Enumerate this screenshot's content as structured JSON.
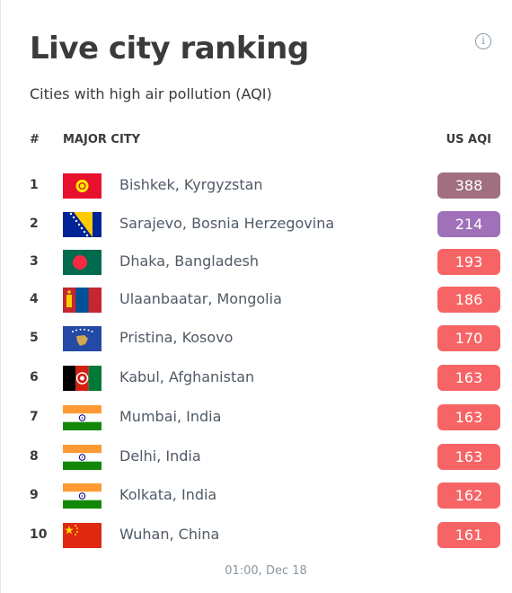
{
  "title": "Live city ranking",
  "subtitle": "Cities with high air pollution (AQI)",
  "info_icon": "info-icon",
  "columns": {
    "rank": "#",
    "city": "MAJOR CITY",
    "aqi": "US AQI"
  },
  "rows": [
    {
      "rank": "1",
      "city": "Bishkek, Kyrgyzstan",
      "aqi": "388",
      "color": "#a07080",
      "flag": "kyrgyzstan-flag-icon"
    },
    {
      "rank": "2",
      "city": "Sarajevo, Bosnia Herzegovina",
      "aqi": "214",
      "color": "#a070b8",
      "flag": "bosnia-flag-icon"
    },
    {
      "rank": "3",
      "city": "Dhaka, Bangladesh",
      "aqi": "193",
      "color": "#f76466",
      "flag": "bangladesh-flag-icon"
    },
    {
      "rank": "4",
      "city": "Ulaanbaatar, Mongolia",
      "aqi": "186",
      "color": "#f76466",
      "flag": "mongolia-flag-icon"
    },
    {
      "rank": "5",
      "city": "Pristina, Kosovo",
      "aqi": "170",
      "color": "#f76466",
      "flag": "kosovo-flag-icon"
    },
    {
      "rank": "6",
      "city": "Kabul, Afghanistan",
      "aqi": "163",
      "color": "#f76466",
      "flag": "afghanistan-flag-icon"
    },
    {
      "rank": "7",
      "city": "Mumbai, India",
      "aqi": "163",
      "color": "#f76466",
      "flag": "india-flag-icon"
    },
    {
      "rank": "8",
      "city": "Delhi, India",
      "aqi": "163",
      "color": "#f76466",
      "flag": "india-flag-icon"
    },
    {
      "rank": "9",
      "city": "Kolkata, India",
      "aqi": "162",
      "color": "#f76466",
      "flag": "india-flag-icon"
    },
    {
      "rank": "10",
      "city": "Wuhan, China",
      "aqi": "161",
      "color": "#f76466",
      "flag": "china-flag-icon"
    }
  ],
  "timestamp": "01:00, Dec 18"
}
